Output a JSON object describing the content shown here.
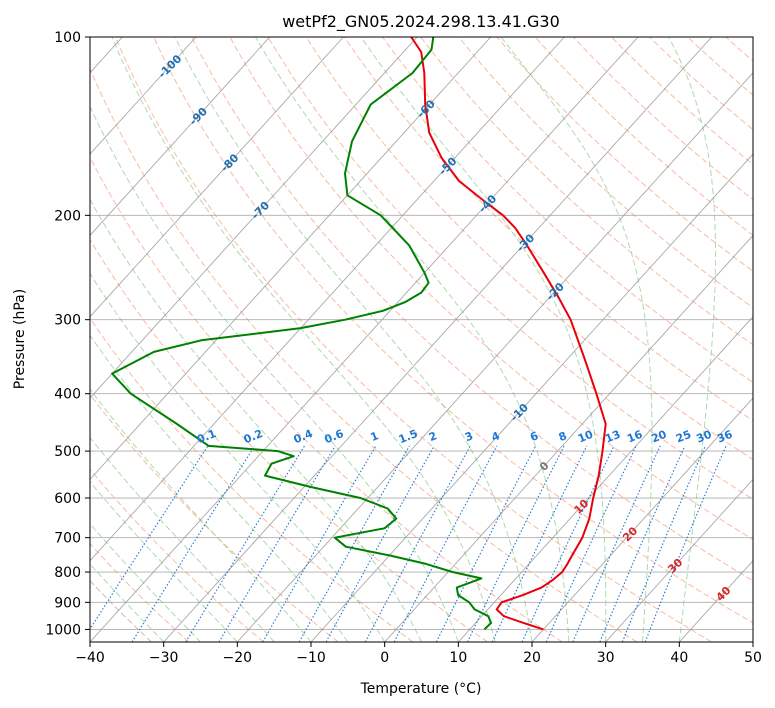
{
  "chart_data": {
    "type": "line",
    "title": "wetPf2_GN05.2024.298.13.41.G30",
    "xlabel": "Temperature (°C)",
    "ylabel": "Pressure (hPa)",
    "xlim": [
      -40,
      50
    ],
    "ylim": [
      1050,
      100
    ],
    "y_scale": "log",
    "skew": "skew-T log-P",
    "grid": true,
    "x_ticks": [
      -40,
      -30,
      -20,
      -10,
      0,
      10,
      20,
      30,
      40,
      50
    ],
    "x_tick_labels": [
      "−40",
      "−30",
      "−20",
      "−10",
      "0",
      "10",
      "20",
      "30",
      "40",
      "50"
    ],
    "y_ticks": [
      1000,
      900,
      800,
      700,
      600,
      500,
      400,
      300,
      200,
      100
    ],
    "y_tick_labels": [
      "1000",
      "900",
      "800",
      "700",
      "600",
      "500",
      "400",
      "300",
      "200",
      "100"
    ],
    "colors": {
      "temperature": "#e8000b",
      "dewpoint": "#008000",
      "isotherm": "#9a9a9a",
      "dry_adiabat": "#f4a582",
      "moist_adiabat": "#9fd39f",
      "mixing_ratio": "#1f77d4",
      "isotherm_label_cold": "#1f6fb0",
      "isotherm_label_warm": "#d62728",
      "zero_label": "#777777",
      "outer_curve": "#cdb38f"
    },
    "series": [
      {
        "points": [
          [
            1000,
            20
          ],
          [
            975,
            16.5
          ],
          [
            950,
            13
          ],
          [
            925,
            11.2
          ],
          [
            900,
            11
          ],
          [
            875,
            13
          ],
          [
            850,
            14.6
          ],
          [
            825,
            15.2
          ],
          [
            800,
            15.5
          ],
          [
            775,
            15.2
          ],
          [
            750,
            14.8
          ],
          [
            700,
            14
          ],
          [
            650,
            12.6
          ],
          [
            600,
            10.6
          ],
          [
            550,
            8.6
          ],
          [
            500,
            6.1
          ],
          [
            450,
            3.2
          ],
          [
            400,
            -1.8
          ],
          [
            350,
            -7.6
          ],
          [
            300,
            -14.4
          ],
          [
            275,
            -18.8
          ],
          [
            250,
            -23.8
          ],
          [
            225,
            -29.4
          ],
          [
            210,
            -33.2
          ],
          [
            200,
            -36.4
          ],
          [
            190,
            -40.4
          ],
          [
            175,
            -46.6
          ],
          [
            160,
            -51.8
          ],
          [
            145,
            -56.6
          ],
          [
            130,
            -60.6
          ],
          [
            115,
            -64.6
          ],
          [
            106,
            -67.6
          ],
          [
            100,
            -70.8
          ]
        ]
      },
      {
        "points": [
          [
            1000,
            12
          ],
          [
            975,
            12.1
          ],
          [
            950,
            10.9
          ],
          [
            925,
            8.2
          ],
          [
            900,
            6.6
          ],
          [
            875,
            4.2
          ],
          [
            850,
            3.1
          ],
          [
            820,
            5.3
          ],
          [
            800,
            0.6
          ],
          [
            775,
            -4
          ],
          [
            750,
            -10
          ],
          [
            725,
            -17
          ],
          [
            700,
            -19.6
          ],
          [
            675,
            -14
          ],
          [
            650,
            -13.6
          ],
          [
            625,
            -16
          ],
          [
            600,
            -21
          ],
          [
            575,
            -29
          ],
          [
            550,
            -36.7
          ],
          [
            525,
            -37.3
          ],
          [
            510,
            -35.2
          ],
          [
            500,
            -38
          ],
          [
            490,
            -48
          ],
          [
            450,
            -55
          ],
          [
            400,
            -65
          ],
          [
            370,
            -70
          ],
          [
            340,
            -67
          ],
          [
            325,
            -62
          ],
          [
            310,
            -50
          ],
          [
            300,
            -45
          ],
          [
            290,
            -41
          ],
          [
            280,
            -39
          ],
          [
            270,
            -38
          ],
          [
            260,
            -38.2
          ],
          [
            250,
            -40
          ],
          [
            225,
            -45.4
          ],
          [
            200,
            -53
          ],
          [
            185,
            -60
          ],
          [
            170,
            -63
          ],
          [
            150,
            -66
          ],
          [
            130,
            -68
          ],
          [
            115,
            -66.2
          ],
          [
            105,
            -66.5
          ],
          [
            100,
            -67.8
          ]
        ]
      }
    ],
    "isotherm_labels": [
      "-100",
      "-90",
      "-80",
      "-70",
      "-60",
      "-50",
      "-40",
      "-30",
      "-20",
      "-10",
      "0",
      "10",
      "20",
      "30",
      "40"
    ],
    "mixing_ratio_labels": [
      "0.1",
      "0.2",
      "0.4",
      "0.6",
      "1",
      "1.5",
      "2",
      "3",
      "4",
      "6",
      "8",
      "10",
      "13",
      "16",
      "20",
      "25",
      "30",
      "36"
    ]
  }
}
